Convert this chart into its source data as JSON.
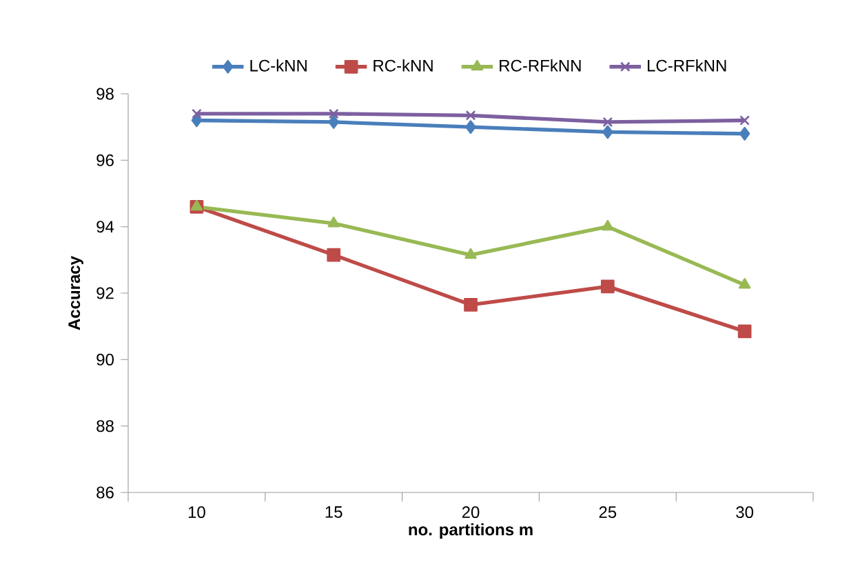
{
  "chart_data": {
    "type": "line",
    "xlabel": "no. partitions m",
    "ylabel": "Accuracy",
    "categories": [
      "10",
      "15",
      "20",
      "25",
      "30"
    ],
    "ylim": [
      86,
      98
    ],
    "yticks": [
      86,
      88,
      90,
      92,
      94,
      96,
      98
    ],
    "grid": false,
    "legend": "top",
    "line_style": "solid",
    "series": [
      {
        "name": "LC-kNN",
        "color": "#4a7ebb",
        "marker": "diamond",
        "values": [
          97.2,
          97.15,
          97.0,
          96.85,
          96.8
        ]
      },
      {
        "name": "RC-kNN",
        "color": "#be4b48",
        "marker": "square",
        "values": [
          94.6,
          93.15,
          91.65,
          92.2,
          90.85
        ]
      },
      {
        "name": "RC-RFkNN",
        "color": "#98b954",
        "marker": "triangle",
        "values": [
          94.6,
          94.1,
          93.15,
          94.0,
          92.25
        ]
      },
      {
        "name": "LC-RFkNN",
        "color": "#7d60a0",
        "marker": "cross",
        "values": [
          97.4,
          97.4,
          97.35,
          97.15,
          97.2
        ]
      }
    ]
  }
}
